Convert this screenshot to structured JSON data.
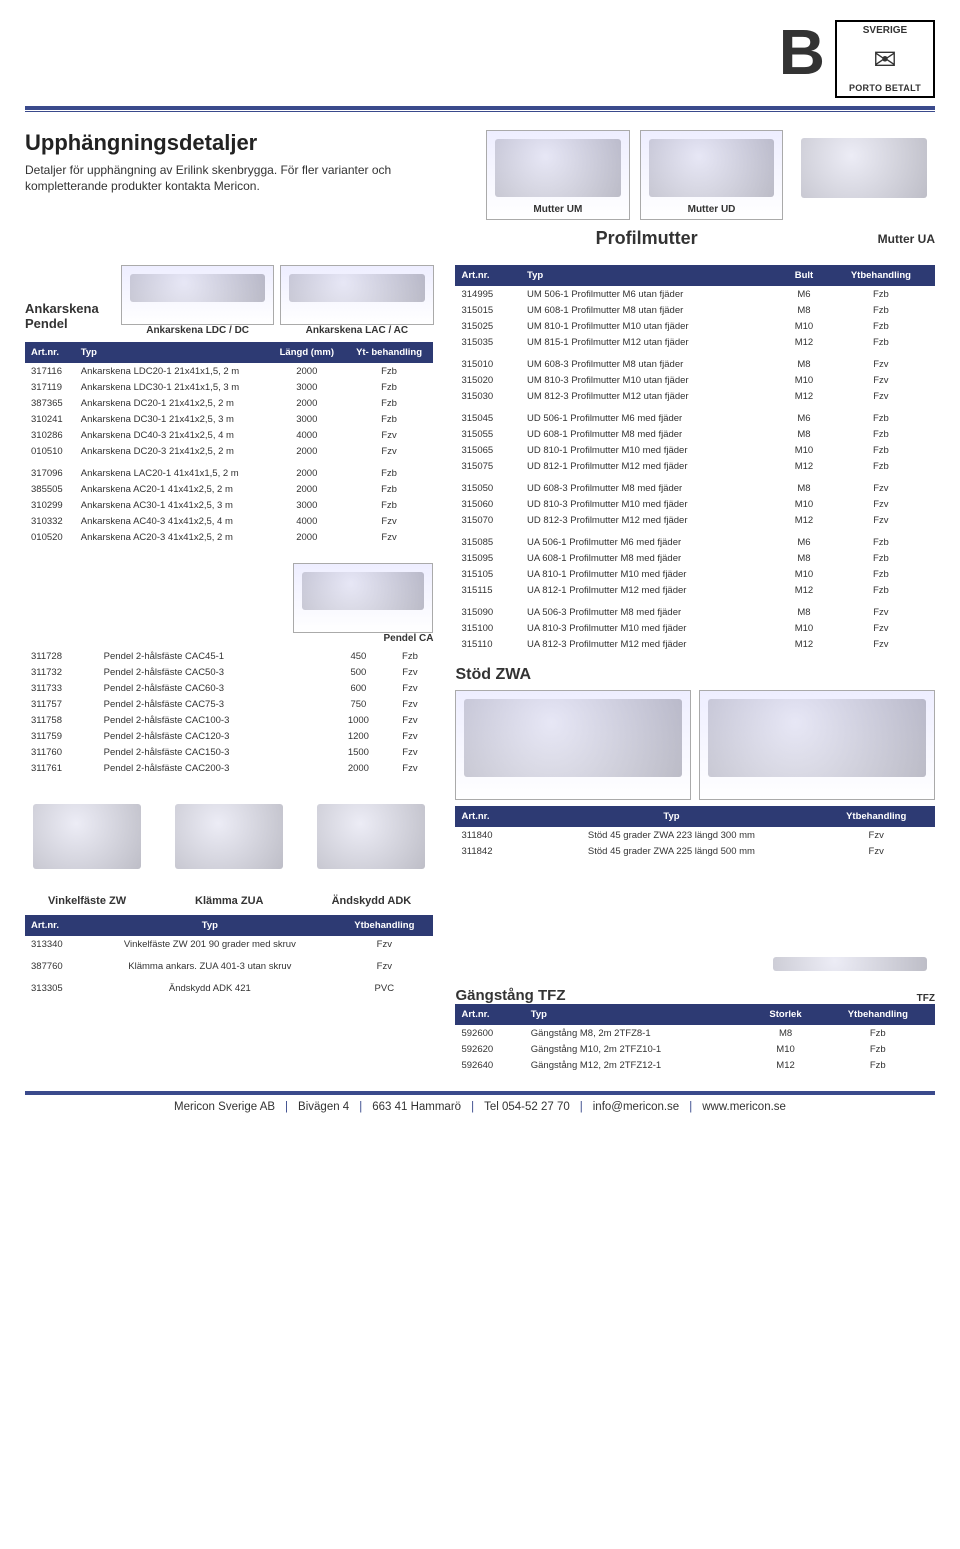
{
  "colors": {
    "header_bg": "#2d3a73",
    "header_fg": "#ffffff",
    "rule": "#3a4a8c"
  },
  "top": {
    "letter": "B",
    "stamp_top": "SVERIGE",
    "stamp_bottom": "PORTO BETALT"
  },
  "hero": {
    "title": "Upphängningsdetaljer",
    "subtitle": "Detaljer för upphängning av Erilink skenbrygga. För fler varianter och kompletterande produkter kontakta Mericon.",
    "img_labels": [
      "Mutter UM",
      "Mutter UD",
      ""
    ]
  },
  "profilmutter": {
    "title": "Profilmutter",
    "right_label": "Mutter UA",
    "headers": [
      "Art.nr.",
      "Typ",
      "Bult",
      "Ytbehandling"
    ],
    "groups": [
      [
        [
          "314995",
          "UM 506-1 Profilmutter M6 utan fjäder",
          "M6",
          "Fzb"
        ],
        [
          "315015",
          "UM 608-1 Profilmutter M8 utan fjäder",
          "M8",
          "Fzb"
        ],
        [
          "315025",
          "UM 810-1 Profilmutter M10 utan fjäder",
          "M10",
          "Fzb"
        ],
        [
          "315035",
          "UM 815-1 Profilmutter M12 utan fjäder",
          "M12",
          "Fzb"
        ]
      ],
      [
        [
          "315010",
          "UM 608-3 Profilmutter M8 utan fjäder",
          "M8",
          "Fzv"
        ],
        [
          "315020",
          "UM 810-3 Profilmutter M10 utan fjäder",
          "M10",
          "Fzv"
        ],
        [
          "315030",
          "UM 812-3 Profilmutter M12 utan fjäder",
          "M12",
          "Fzv"
        ]
      ],
      [
        [
          "315045",
          "UD 506-1 Profilmutter M6 med fjäder",
          "M6",
          "Fzb"
        ],
        [
          "315055",
          "UD 608-1 Profilmutter M8 med fjäder",
          "M8",
          "Fzb"
        ],
        [
          "315065",
          "UD 810-1 Profilmutter M10 med fjäder",
          "M10",
          "Fzb"
        ],
        [
          "315075",
          "UD 812-1 Profilmutter M12 med fjäder",
          "M12",
          "Fzb"
        ]
      ],
      [
        [
          "315050",
          "UD 608-3 Profilmutter M8 med fjäder",
          "M8",
          "Fzv"
        ],
        [
          "315060",
          "UD 810-3 Profilmutter M10 med fjäder",
          "M10",
          "Fzv"
        ],
        [
          "315070",
          "UD 812-3 Profilmutter M12 med fjäder",
          "M12",
          "Fzv"
        ]
      ],
      [
        [
          "315085",
          "UA 506-1 Profilmutter M6 med fjäder",
          "M6",
          "Fzb"
        ],
        [
          "315095",
          "UA 608-1 Profilmutter M8 med fjäder",
          "M8",
          "Fzb"
        ],
        [
          "315105",
          "UA 810-1 Profilmutter M10 med fjäder",
          "M10",
          "Fzb"
        ],
        [
          "315115",
          "UA 812-1 Profilmutter M12 med fjäder",
          "M12",
          "Fzb"
        ]
      ],
      [
        [
          "315090",
          "UA 506-3 Profilmutter M8 med fjäder",
          "M8",
          "Fzv"
        ],
        [
          "315100",
          "UA 810-3 Profilmutter M10 med fjäder",
          "M10",
          "Fzv"
        ],
        [
          "315110",
          "UA 812-3 Profilmutter M12 med fjäder",
          "M12",
          "Fzv"
        ]
      ]
    ]
  },
  "ankarskena": {
    "title": "Ankarskena Pendel",
    "img_cap_left": "Ankarskena LDC / DC",
    "img_cap_right": "Ankarskena LAC / AC",
    "headers": [
      "Art.nr.",
      "Typ",
      "Längd (mm)",
      "Yt- behandling"
    ],
    "groups": [
      [
        [
          "317116",
          "Ankarskena LDC20-1 21x41x1,5, 2 m",
          "2000",
          "Fzb"
        ],
        [
          "317119",
          "Ankarskena LDC30-1 21x41x1,5, 3 m",
          "3000",
          "Fzb"
        ],
        [
          "387365",
          "Ankarskena DC20-1 21x41x2,5, 2 m",
          "2000",
          "Fzb"
        ],
        [
          "310241",
          "Ankarskena DC30-1 21x41x2,5, 3 m",
          "3000",
          "Fzb"
        ],
        [
          "310286",
          "Ankarskena DC40-3 21x41x2,5, 4 m",
          "4000",
          "Fzv"
        ],
        [
          "010510",
          "Ankarskena DC20-3 21x41x2,5, 2 m",
          "2000",
          "Fzv"
        ]
      ],
      [
        [
          "317096",
          "Ankarskena LAC20-1 41x41x1,5, 2 m",
          "2000",
          "Fzb"
        ],
        [
          "385505",
          "Ankarskena AC20-1 41x41x2,5, 2 m",
          "2000",
          "Fzb"
        ],
        [
          "310299",
          "Ankarskena AC30-1 41x41x2,5, 3 m",
          "3000",
          "Fzb"
        ],
        [
          "310332",
          "Ankarskena AC40-3 41x41x2,5, 4 m",
          "4000",
          "Fzv"
        ],
        [
          "010520",
          "Ankarskena AC20-3 41x41x2,5, 2 m",
          "2000",
          "Fzv"
        ]
      ]
    ]
  },
  "pendel": {
    "img_label": "Pendel CA",
    "rows": [
      [
        "311728",
        "Pendel 2-hålsfäste CAC45-1",
        "450",
        "Fzb"
      ],
      [
        "311732",
        "Pendel 2-hålsfäste CAC50-3",
        "500",
        "Fzv"
      ],
      [
        "311733",
        "Pendel 2-hålsfäste CAC60-3",
        "600",
        "Fzv"
      ],
      [
        "311757",
        "Pendel 2-hålsfäste CAC75-3",
        "750",
        "Fzv"
      ],
      [
        "311758",
        "Pendel 2-hålsfäste CAC100-3",
        "1000",
        "Fzv"
      ],
      [
        "311759",
        "Pendel 2-hålsfäste CAC120-3",
        "1200",
        "Fzv"
      ],
      [
        "311760",
        "Pendel 2-hålsfäste CAC150-3",
        "1500",
        "Fzv"
      ],
      [
        "311761",
        "Pendel 2-hålsfäste CAC200-3",
        "2000",
        "Fzv"
      ]
    ]
  },
  "stod": {
    "title": "Stöd ZWA",
    "headers": [
      "Art.nr.",
      "Typ",
      "Ytbehandling"
    ],
    "rows": [
      [
        "311840",
        "Stöd 45 grader ZWA 223 längd 300 mm",
        "Fzv"
      ],
      [
        "311842",
        "Stöd 45 grader ZWA 225 längd 500 mm",
        "Fzv"
      ]
    ]
  },
  "three_items": {
    "captions": [
      "Vinkelfäste ZW",
      "Klämma ZUA",
      "Ändskydd ADK"
    ],
    "headers": [
      "Art.nr.",
      "Typ",
      "Ytbehandling"
    ],
    "rows": [
      [
        "313340",
        "Vinkelfäste ZW 201 90 grader med skruv",
        "Fzv"
      ],
      [
        "387760",
        "Klämma ankars. ZUA 401-3 utan skruv",
        "Fzv"
      ],
      [
        "313305",
        "Ändskydd ADK 421",
        "PVC"
      ]
    ]
  },
  "gangstang": {
    "title": "Gängstång TFZ",
    "tfz": "TFZ",
    "headers": [
      "Art.nr.",
      "Typ",
      "Storlek",
      "Ytbehandling"
    ],
    "rows": [
      [
        "592600",
        "Gängstång M8, 2m 2TFZ8-1",
        "M8",
        "Fzb"
      ],
      [
        "592620",
        "Gängstång M10, 2m 2TFZ10-1",
        "M10",
        "Fzb"
      ],
      [
        "592640",
        "Gängstång M12, 2m 2TFZ12-1",
        "M12",
        "Fzb"
      ]
    ]
  },
  "footer": {
    "parts": [
      "Mericon Sverige AB",
      "Bivägen 4",
      "663 41 Hammarö",
      "Tel 054-52 27 70",
      "info@mericon.se",
      "www.mericon.se"
    ]
  }
}
